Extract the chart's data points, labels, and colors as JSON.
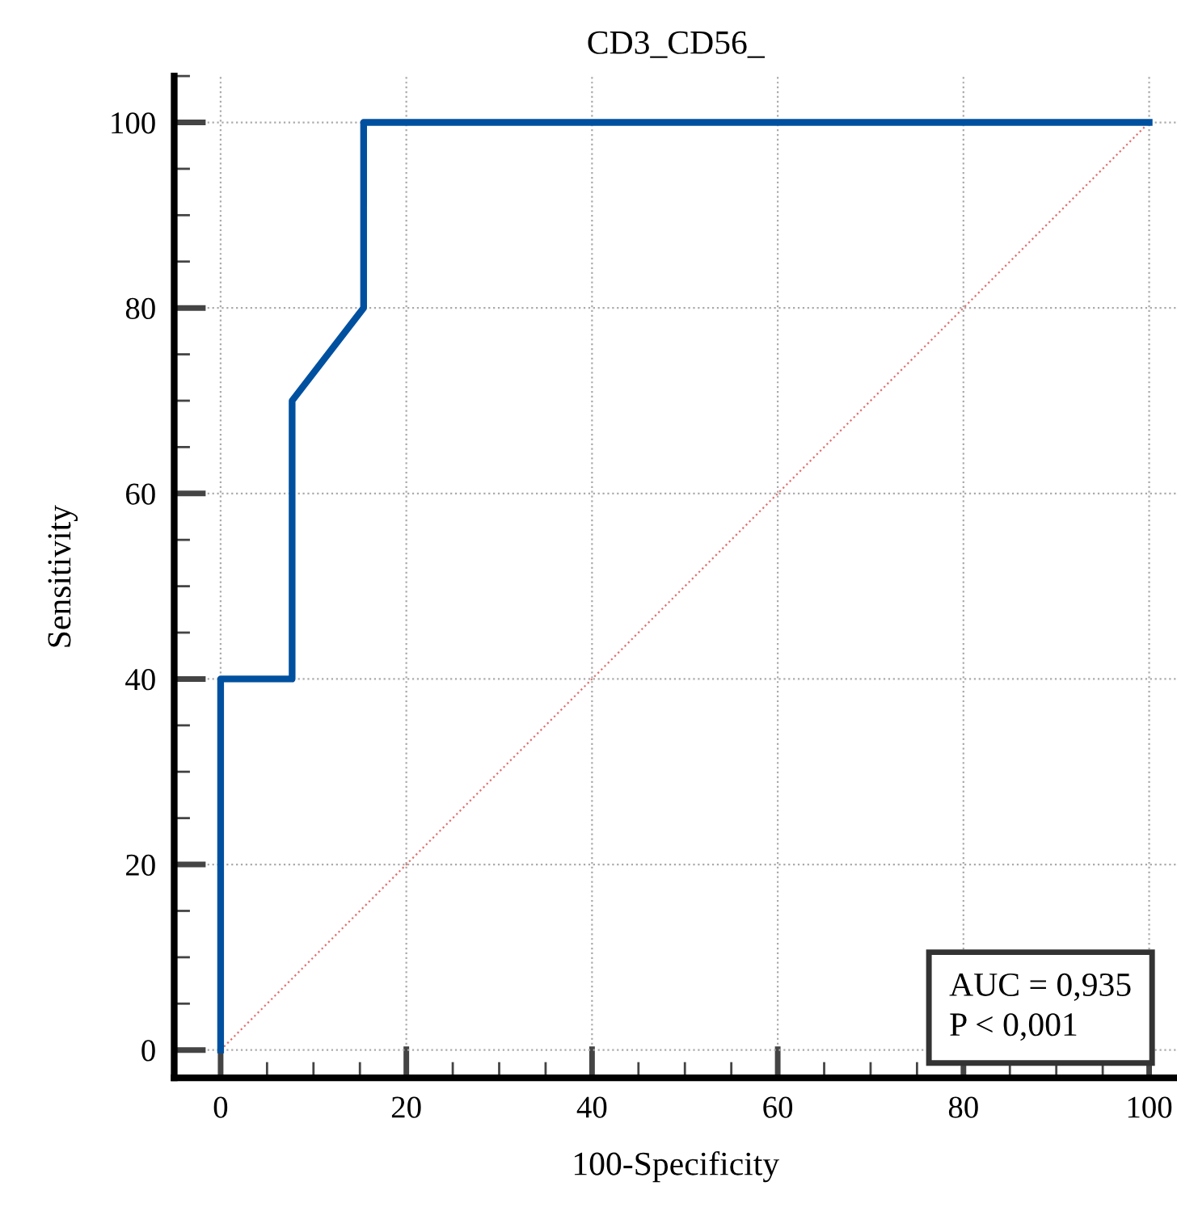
{
  "chart_data": {
    "type": "line",
    "title": "CD3_CD56_",
    "xlabel": "100-Specificity",
    "ylabel": "Sensitivity",
    "series": [
      {
        "color": "#0050a0",
        "x": [
          0,
          0,
          7.7,
          7.7,
          15.4,
          15.4,
          100
        ],
        "values": [
          0,
          40,
          40,
          70,
          80,
          100,
          100
        ]
      },
      {
        "color": "#e07070",
        "line_style": "dotted",
        "x": [
          0,
          100
        ],
        "values": [
          0,
          100
        ]
      }
    ],
    "xlim": [
      -5,
      103
    ],
    "ylim": [
      -3,
      105
    ],
    "xticks": [
      0,
      20,
      40,
      60,
      80,
      100
    ],
    "yticks": [
      0,
      20,
      40,
      60,
      80,
      100
    ],
    "grid": true,
    "legend": false,
    "marker": "none",
    "annotations": [
      "AUC = 0,935\nP < 0,001"
    ]
  }
}
